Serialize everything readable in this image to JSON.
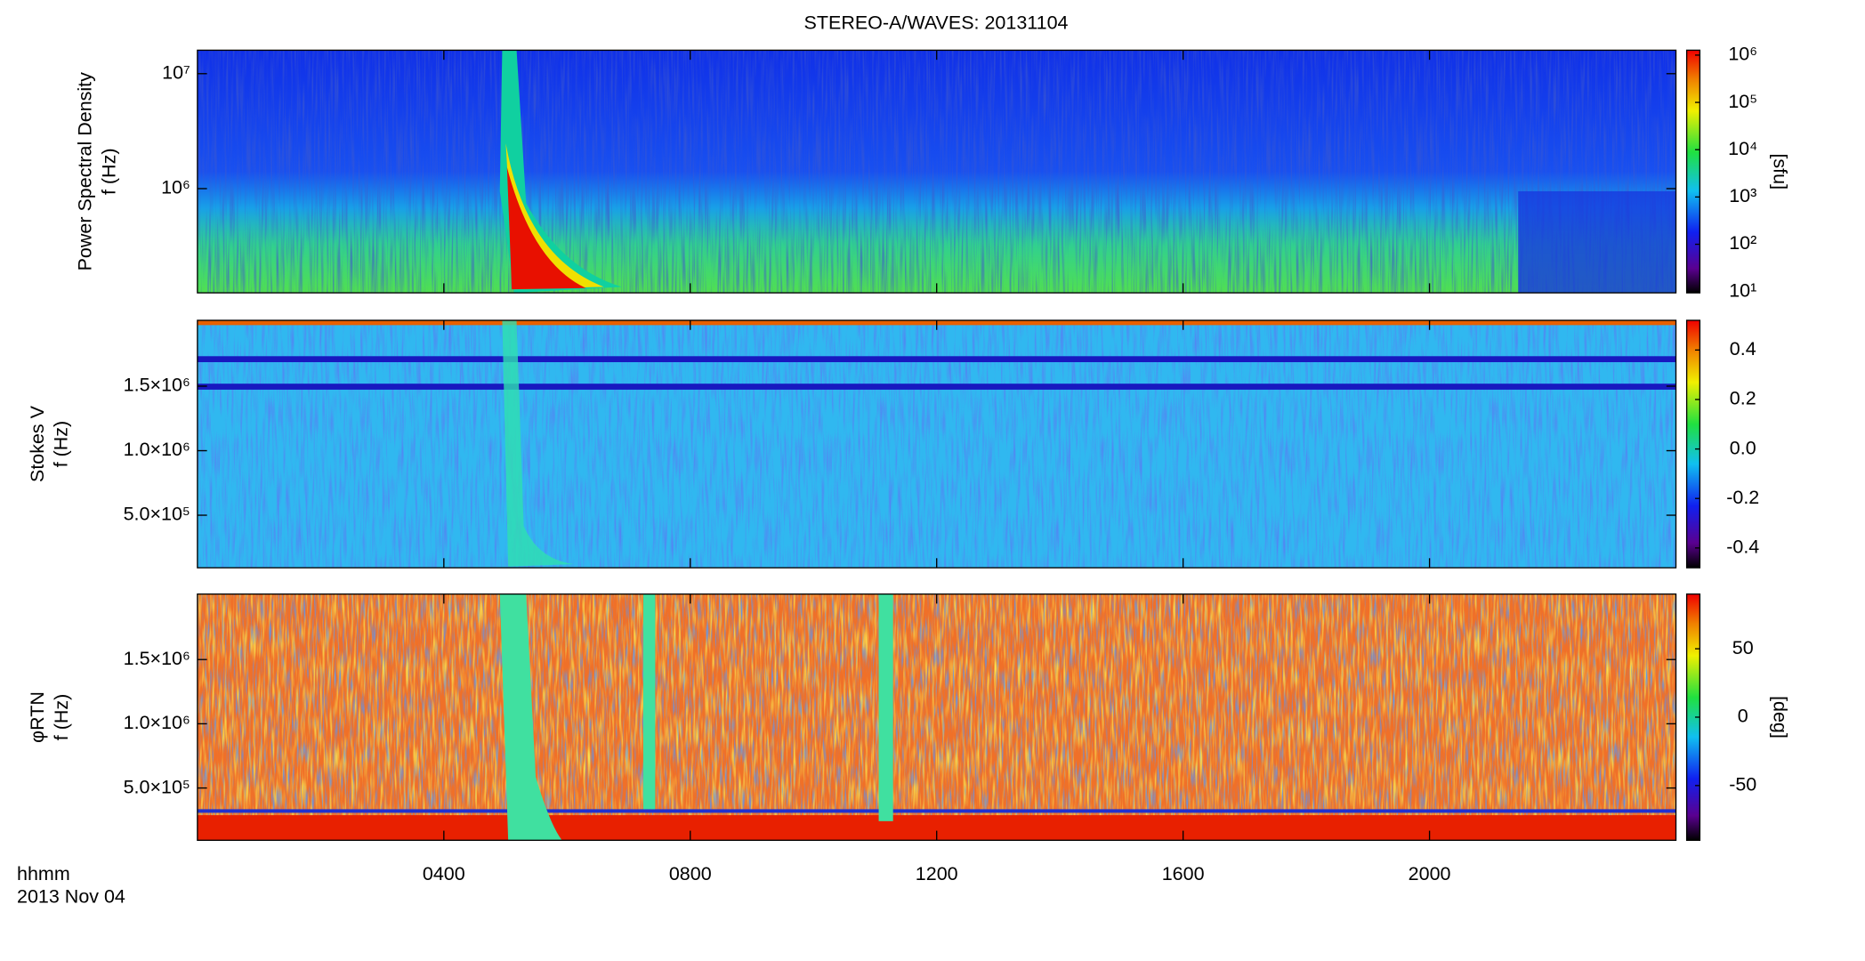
{
  "chart_data": [
    {
      "type": "heatmap",
      "title": "STEREO-A/WAVES: 20131104",
      "ylabel": [
        "Power Spectral Density",
        "f (Hz)"
      ],
      "log": true,
      "ylim": [
        124000,
        16000000
      ],
      "yticks": [
        {
          "value": 1000000,
          "label": "10⁶"
        },
        {
          "value": 10000000,
          "label": "10⁷"
        }
      ],
      "colorbar": {
        "label": "[sfu]",
        "log": true,
        "lim": [
          9.4,
          1270000
        ],
        "ticks": [
          {
            "value": 10,
            "label": "10¹"
          },
          {
            "value": 100,
            "label": "10²"
          },
          {
            "value": 1000,
            "label": "10³"
          },
          {
            "value": 10000,
            "label": "10⁴"
          },
          {
            "value": 100000,
            "label": "10⁵"
          },
          {
            "value": 1000000,
            "label": "10⁶"
          }
        ]
      }
    },
    {
      "type": "heatmap",
      "ylabel": [
        "Stokes V",
        "f (Hz)"
      ],
      "log": false,
      "ylim": [
        93000,
        2010000
      ],
      "yticks": [
        {
          "value": 500000,
          "label": "5.0×10⁵"
        },
        {
          "value": 1000000,
          "label": "1.0×10⁶"
        },
        {
          "value": 1500000,
          "label": "1.5×10⁶"
        }
      ],
      "colorbar": {
        "label": "",
        "log": false,
        "lim": [
          -0.48,
          0.52
        ],
        "ticks": [
          -0.4,
          -0.2,
          {
            "value": 0,
            "label": "0.0"
          },
          0.2,
          0.4
        ]
      }
    },
    {
      "type": "heatmap",
      "ylabel": [
        "φRTN",
        "f (Hz)"
      ],
      "log": false,
      "ylim": [
        93000,
        2010000
      ],
      "yticks": [
        {
          "value": 500000,
          "label": "5.0×10⁵"
        },
        {
          "value": 1000000,
          "label": "1.0×10⁶"
        },
        {
          "value": 1500000,
          "label": "1.5×10⁶"
        }
      ],
      "colorbar": {
        "label": "[deg]",
        "log": false,
        "lim": [
          -90,
          90
        ],
        "ticks": [
          -50,
          0,
          50
        ]
      },
      "xlabel": "hhmm",
      "date": "2013 Nov 04",
      "xlim": [
        0,
        24
      ],
      "xticks": [
        {
          "value": 4,
          "label": "0400"
        },
        {
          "value": 8,
          "label": "0800"
        },
        {
          "value": 12,
          "label": "1200"
        },
        {
          "value": 16,
          "label": "1600"
        },
        {
          "value": 20,
          "label": "2000"
        }
      ]
    }
  ]
}
